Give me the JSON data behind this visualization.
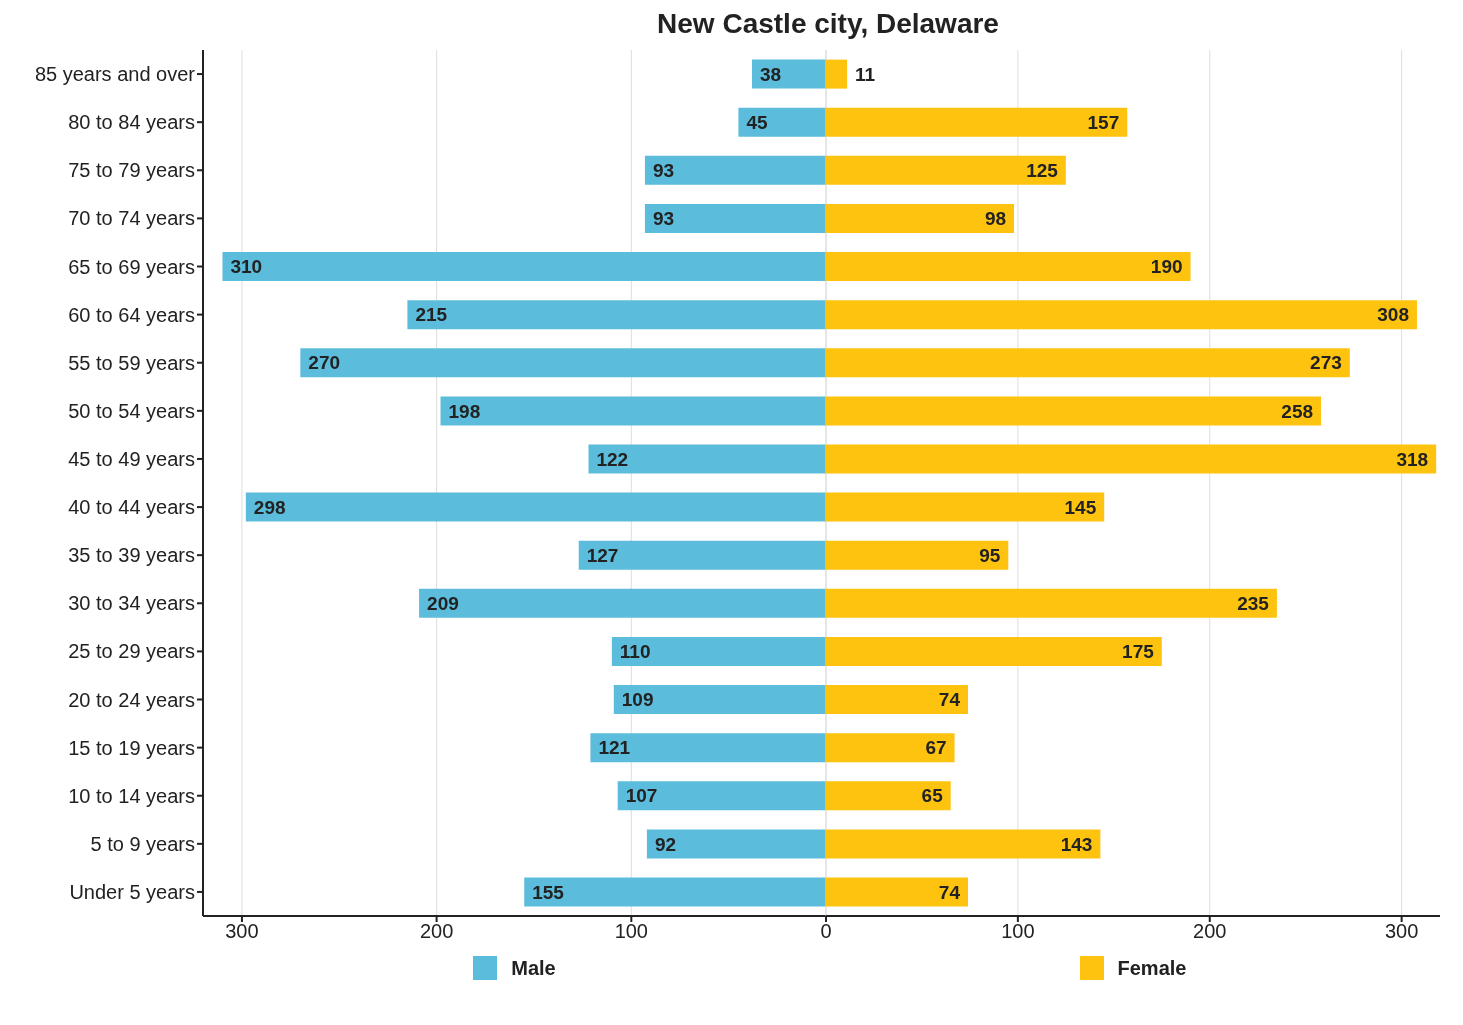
{
  "chart_data": [
    {
      "type": "bar",
      "orientation": "horizontal",
      "title": "New Castle city, Delaware",
      "categories": [
        "85 years and over",
        "80 to 84 years",
        "75 to 79 years",
        "70 to 74 years",
        "65 to 69 years",
        "60 to 64 years",
        "55 to 59 years",
        "50 to 54 years",
        "45 to 49 years",
        "40 to 44 years",
        "35 to 39 years",
        "30 to 34 years",
        "25 to 29 years",
        "20 to 24 years",
        "15 to 19 years",
        "10 to 14 years",
        "5 to 9 years",
        "Under 5 years"
      ],
      "series": [
        {
          "name": "Male",
          "color": "#5bbcdc",
          "values": [
            38,
            45,
            93,
            93,
            310,
            215,
            270,
            198,
            122,
            298,
            127,
            209,
            110,
            109,
            121,
            107,
            92,
            155
          ]
        }
      ],
      "xlim": [
        320,
        0
      ],
      "xticks": [
        300,
        200,
        100,
        0
      ],
      "grid": "x",
      "legend": "bottom",
      "data_labels": true
    },
    {
      "type": "bar",
      "orientation": "horizontal",
      "categories": [
        null,
        null,
        null,
        null,
        null,
        null,
        null,
        null,
        null,
        null,
        null,
        null,
        null,
        null,
        null,
        null,
        null,
        null
      ],
      "series": [
        {
          "name": "Female",
          "color": "#fec30f",
          "values": [
            11,
            157,
            125,
            98,
            190,
            308,
            273,
            258,
            318,
            145,
            95,
            235,
            175,
            74,
            67,
            65,
            143,
            74
          ]
        }
      ],
      "xlim": [
        0,
        320
      ],
      "xticks": [
        {
          "value": 0,
          "label": null
        },
        100,
        200,
        300
      ],
      "grid": "x",
      "legend": "bottom",
      "data_labels": true,
      "tick_labels": "x"
    }
  ]
}
